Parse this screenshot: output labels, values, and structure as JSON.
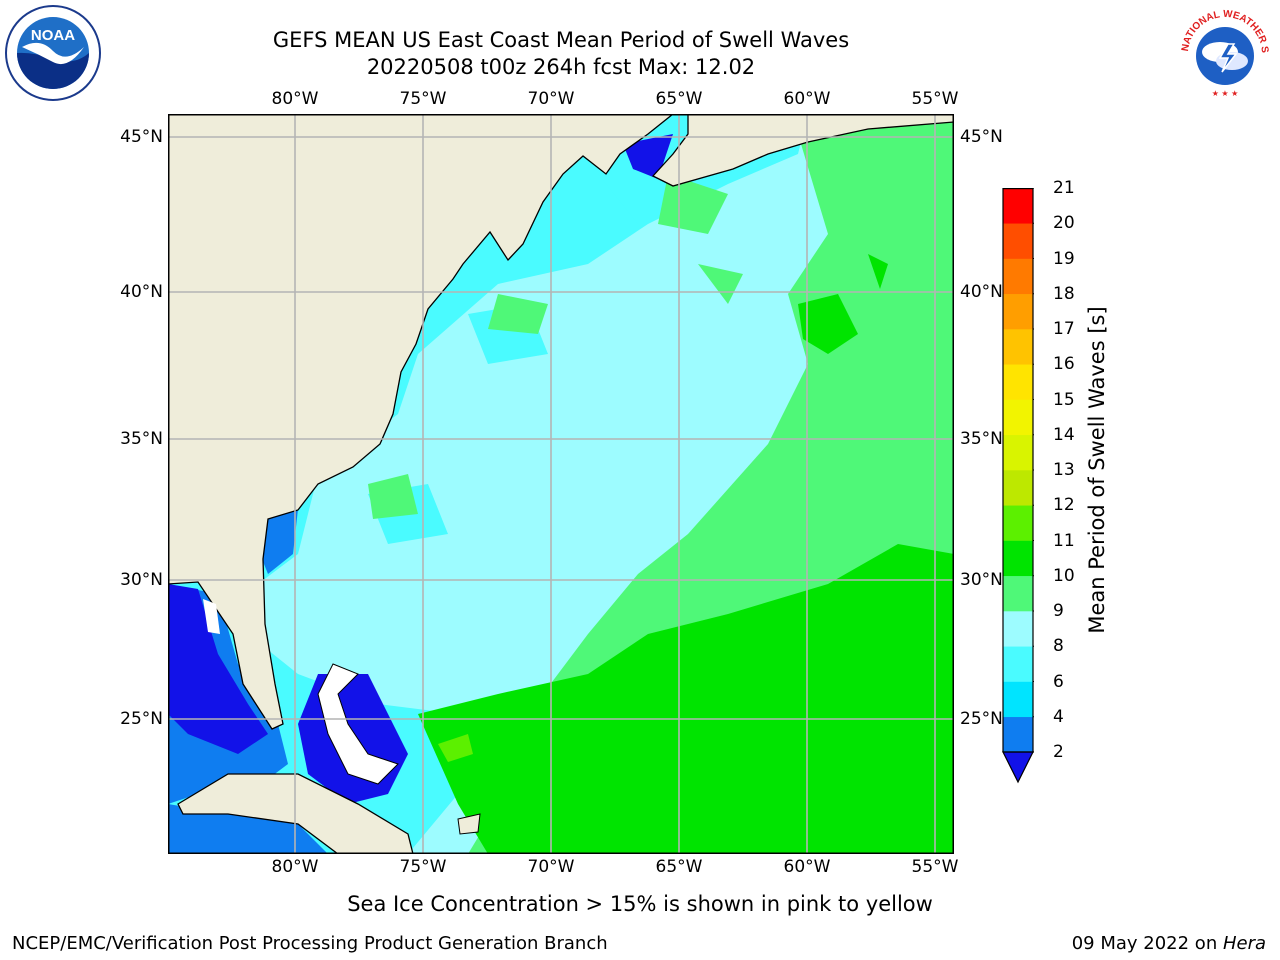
{
  "title": {
    "line1": "GEFS MEAN US East Coast Mean Period of Swell Waves",
    "line2": "20220508 t00z 264h fcst   Max: 12.02"
  },
  "map": {
    "lon_ticks": [
      "80°W",
      "75°W",
      "70°W",
      "65°W",
      "60°W",
      "55°W"
    ],
    "lat_ticks": [
      "45°N",
      "40°N",
      "35°N",
      "30°N",
      "25°N"
    ],
    "colors": {
      "land": "#efedda",
      "grid": "#b4b4b4",
      "coast": "#000000"
    }
  },
  "colorbar": {
    "title": "Mean Period of Swell Waves [s]",
    "levels": [
      "2",
      "4",
      "6",
      "8",
      "9",
      "10",
      "11",
      "12",
      "13",
      "14",
      "15",
      "16",
      "17",
      "18",
      "19",
      "20",
      "21"
    ],
    "colors": [
      "#0f7df0",
      "#00e4ff",
      "#4afbff",
      "#9dfcff",
      "#4ff878",
      "#00e400",
      "#5cf000",
      "#bde800",
      "#d9f400",
      "#f2f400",
      "#ffe400",
      "#ffc300",
      "#ff9e00",
      "#ff7a00",
      "#ff4e00",
      "#ff0000"
    ],
    "under_color": "#1212e8"
  },
  "caption": "Sea Ice Concentration > 15% is shown in pink to yellow",
  "footer": {
    "left": "NCEP/EMC/Verification Post Processing Product Generation Branch",
    "right_date": "09 May 2022 on ",
    "right_machine": "Hera"
  },
  "logos": {
    "noaa_text": "NOAA",
    "nws_text": "NATIONAL WEATHER SERVICE"
  }
}
